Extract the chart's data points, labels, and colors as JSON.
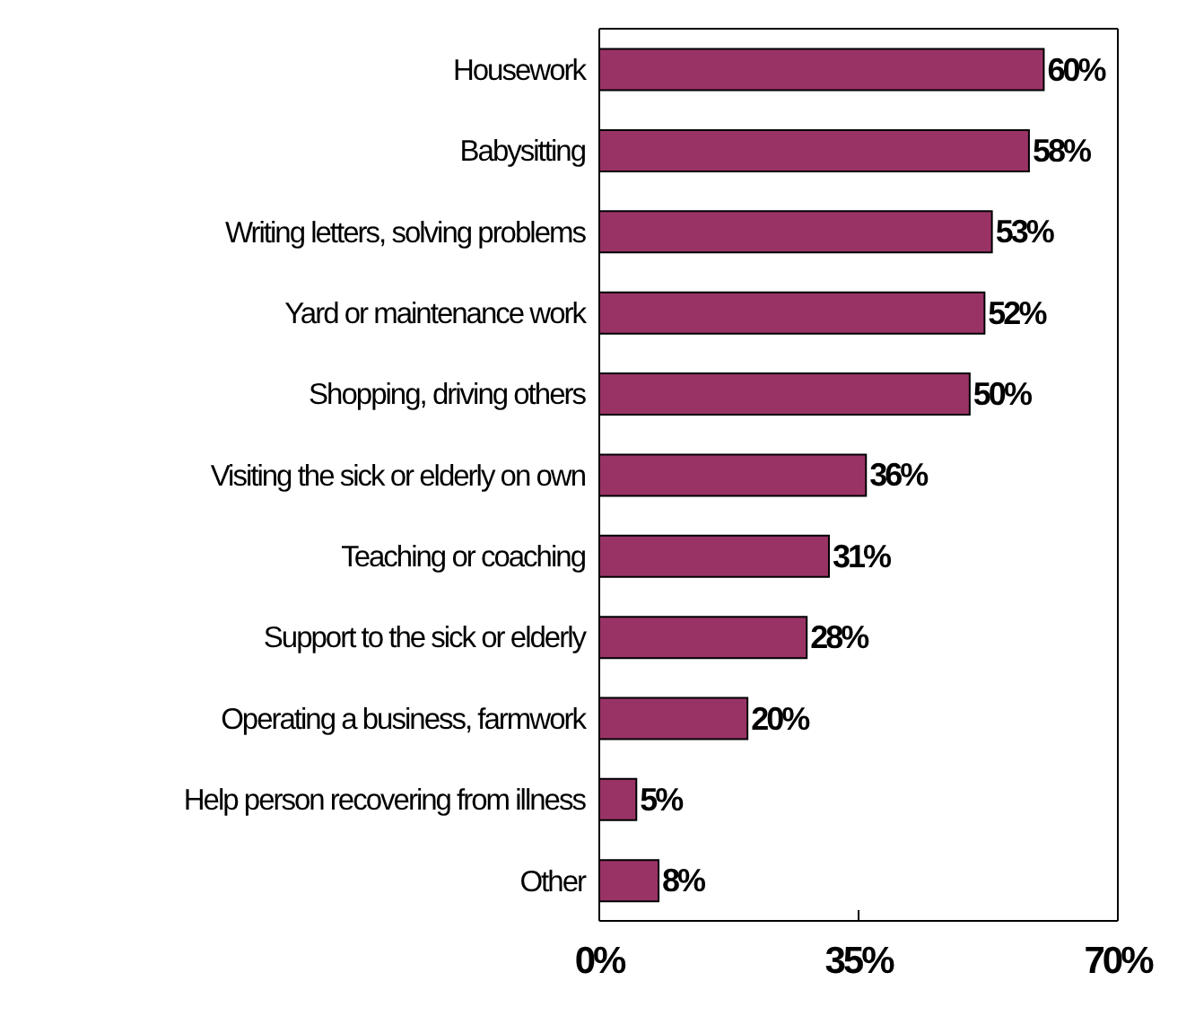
{
  "chart_data": {
    "type": "bar",
    "orientation": "horizontal",
    "categories": [
      "Housework",
      "Babysitting",
      "Writing letters, solving problems",
      "Yard or maintenance work",
      "Shopping, driving others",
      "Visiting the sick or elderly on own",
      "Teaching or coaching",
      "Support to the sick or elderly",
      "Operating a business, farmwork",
      "Help person recovering from illness",
      "Other"
    ],
    "values": [
      60,
      58,
      53,
      52,
      50,
      36,
      31,
      28,
      20,
      5,
      8
    ],
    "value_labels": [
      "60%",
      "58%",
      "53%",
      "52%",
      "50%",
      "36%",
      "31%",
      "28%",
      "20%",
      "5%",
      "8%"
    ],
    "color": "#993366",
    "xlim": [
      0,
      70
    ],
    "xticks": [
      {
        "value": 0,
        "label": "0%"
      },
      {
        "value": 35,
        "label": "35%"
      },
      {
        "value": 70,
        "label": "70%"
      }
    ],
    "grid": false
  }
}
